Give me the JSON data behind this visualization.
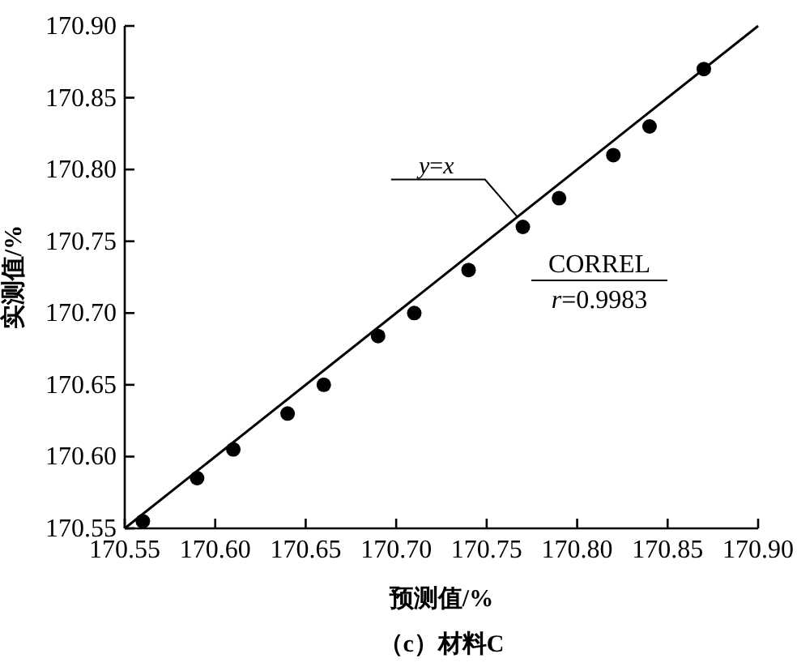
{
  "chart_data": {
    "type": "scatter",
    "title": "（c）材料C",
    "xlabel": "预测值/%",
    "ylabel": "实测值/%",
    "xlim": [
      170.55,
      170.9
    ],
    "ylim": [
      170.55,
      170.9
    ],
    "xticks": [
      170.55,
      {
        "value": 170.6,
        "label": "170.60"
      },
      170.65,
      {
        "value": 170.7,
        "label": "170.70"
      },
      170.75,
      {
        "value": 170.8,
        "label": "170.80"
      },
      170.85,
      {
        "value": 170.9,
        "label": "170.90"
      }
    ],
    "yticks": [
      170.55,
      {
        "value": 170.6,
        "label": "170.60"
      },
      170.65,
      {
        "value": 170.7,
        "label": "170.70"
      },
      170.75,
      {
        "value": 170.8,
        "label": "170.80"
      },
      170.85,
      {
        "value": 170.9,
        "label": "170.90"
      }
    ],
    "marker": "circle",
    "grid": false,
    "series": [
      {
        "color": "#000000",
        "x": [
          170.56,
          170.59,
          170.61,
          170.64,
          170.66,
          170.69,
          170.71,
          170.74,
          170.77,
          170.79,
          170.82,
          170.84,
          170.87
        ],
        "values": [
          170.555,
          170.585,
          170.605,
          170.63,
          170.65,
          170.684,
          170.7,
          170.73,
          170.76,
          170.78,
          170.81,
          170.83,
          170.87
        ]
      },
      {
        "type": "line",
        "marker": "none",
        "name": "*y*=*x*",
        "color": "#000000",
        "x": [
          170.55,
          170.9
        ],
        "values": [
          170.55,
          170.9
        ]
      }
    ],
    "annotations": [
      "CORREL",
      "*r*=0.9983"
    ]
  }
}
